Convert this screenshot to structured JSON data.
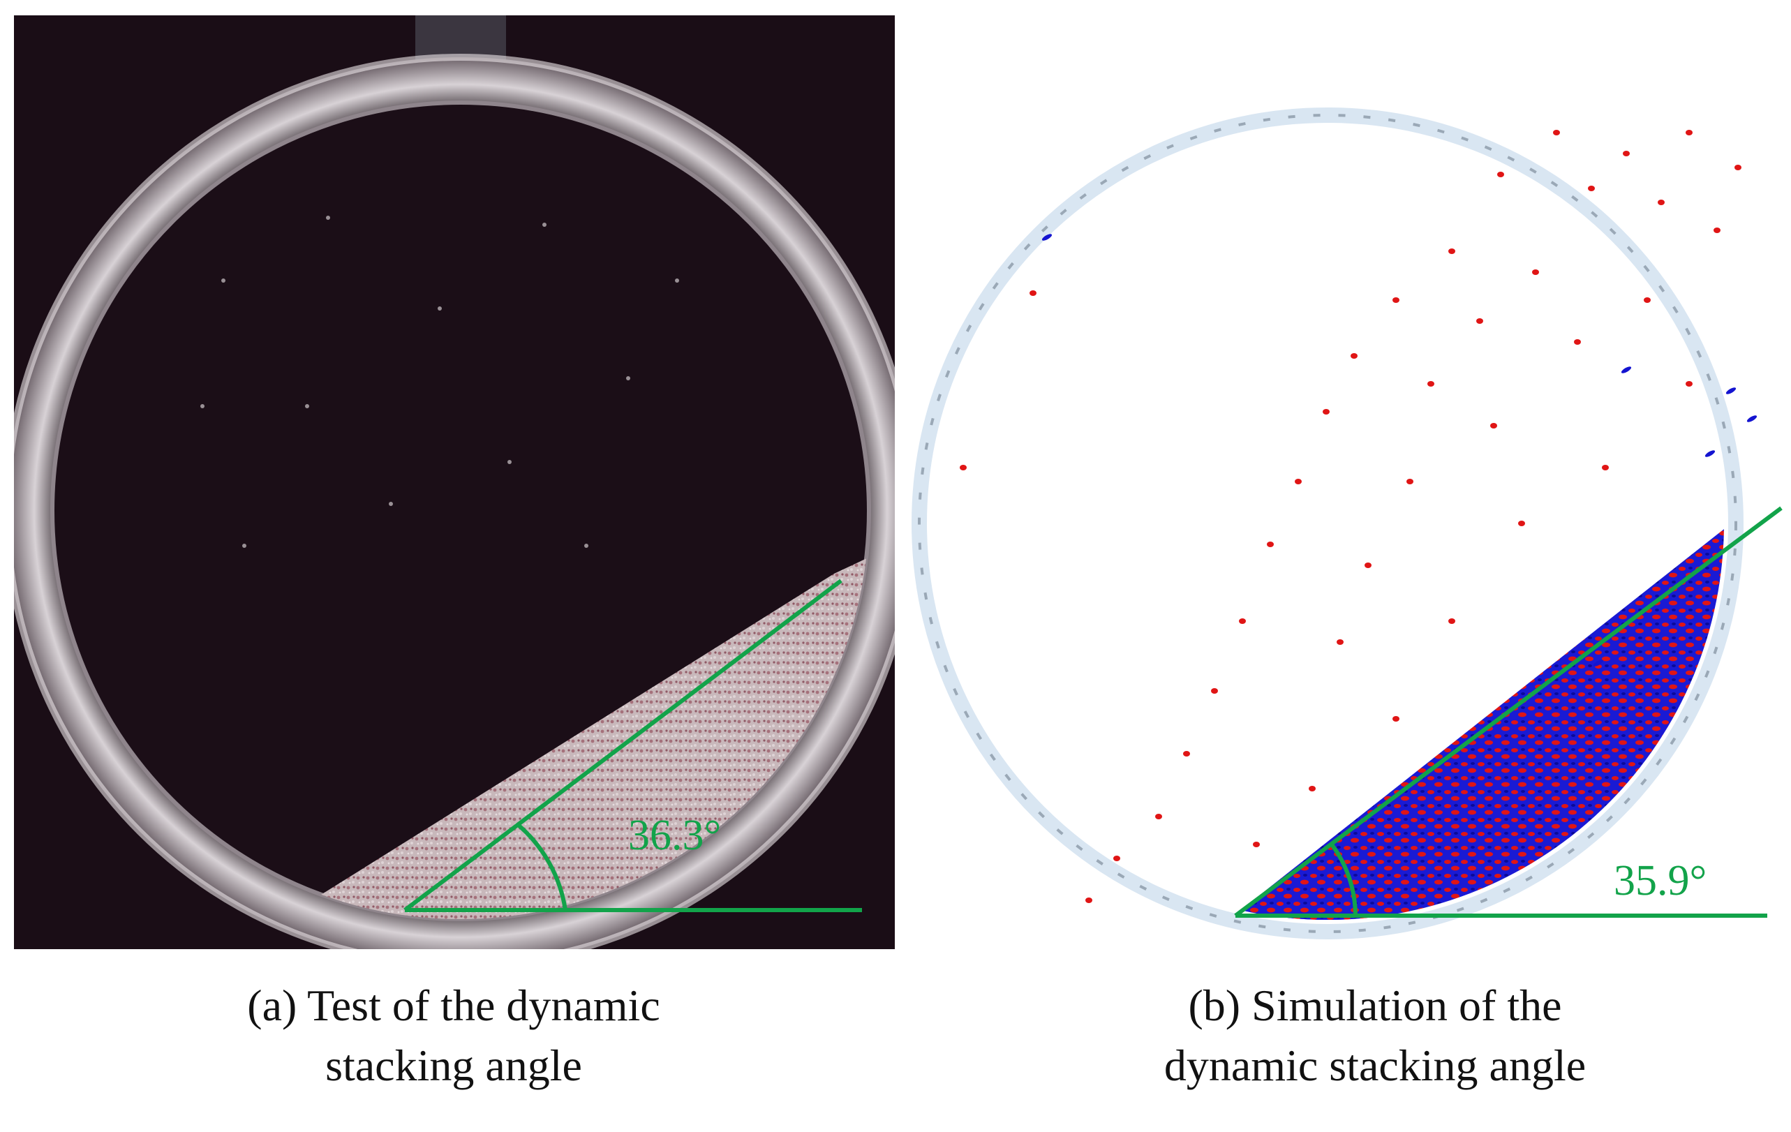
{
  "panels": {
    "test": {
      "angle_label": "36.3°",
      "caption_line1": "(a) Test of the dynamic",
      "caption_line2": "stacking angle"
    },
    "simulation": {
      "angle_label": "35.9°",
      "caption_line1": "(b) Simulation of the",
      "caption_line2": "dynamic stacking angle"
    }
  },
  "colors": {
    "angle_line": "#12a34a",
    "particle_primary": "#e01515",
    "particle_secondary": "#1414d0",
    "photo_background": "#1a0d16",
    "drum_rim": "#d9e6f2"
  },
  "icons": {
    "panel_a": "photo-drum-test",
    "panel_b": "simulated-drum-particles"
  }
}
